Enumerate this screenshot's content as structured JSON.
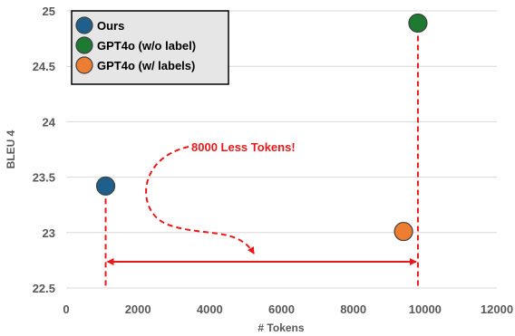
{
  "chart_data": {
    "type": "scatter",
    "xlabel": "# Tokens",
    "ylabel": "BLEU 4",
    "xlim": [
      0,
      12000
    ],
    "ylim": [
      22.5,
      25
    ],
    "xticks": [
      0,
      2000,
      4000,
      6000,
      8000,
      10000,
      12000
    ],
    "yticks": [
      22.5,
      23,
      23.5,
      24,
      24.5,
      25
    ],
    "xtick_labels": [
      "0",
      "2000",
      "4000",
      "6000",
      "8000",
      "10000",
      "12000"
    ],
    "ytick_labels": [
      "22.5",
      "23",
      "23.5",
      "24",
      "24.5",
      "25"
    ],
    "grid": "horizontal",
    "legend_position": "top-left",
    "series": [
      {
        "name": "Ours",
        "color": "#1f5f8b",
        "x": [
          1100
        ],
        "y": [
          23.42
        ]
      },
      {
        "name": "GPT4o (w/o label)",
        "color": "#1e7a32",
        "x": [
          9800
        ],
        "y": [
          24.89
        ]
      },
      {
        "name": "GPT4o (w/ labels)",
        "color": "#ed7d31",
        "x": [
          9400
        ],
        "y": [
          23.01
        ]
      }
    ],
    "annotations": [
      {
        "text": "8000 Less Tokens!",
        "color": "#e8191a"
      }
    ]
  }
}
